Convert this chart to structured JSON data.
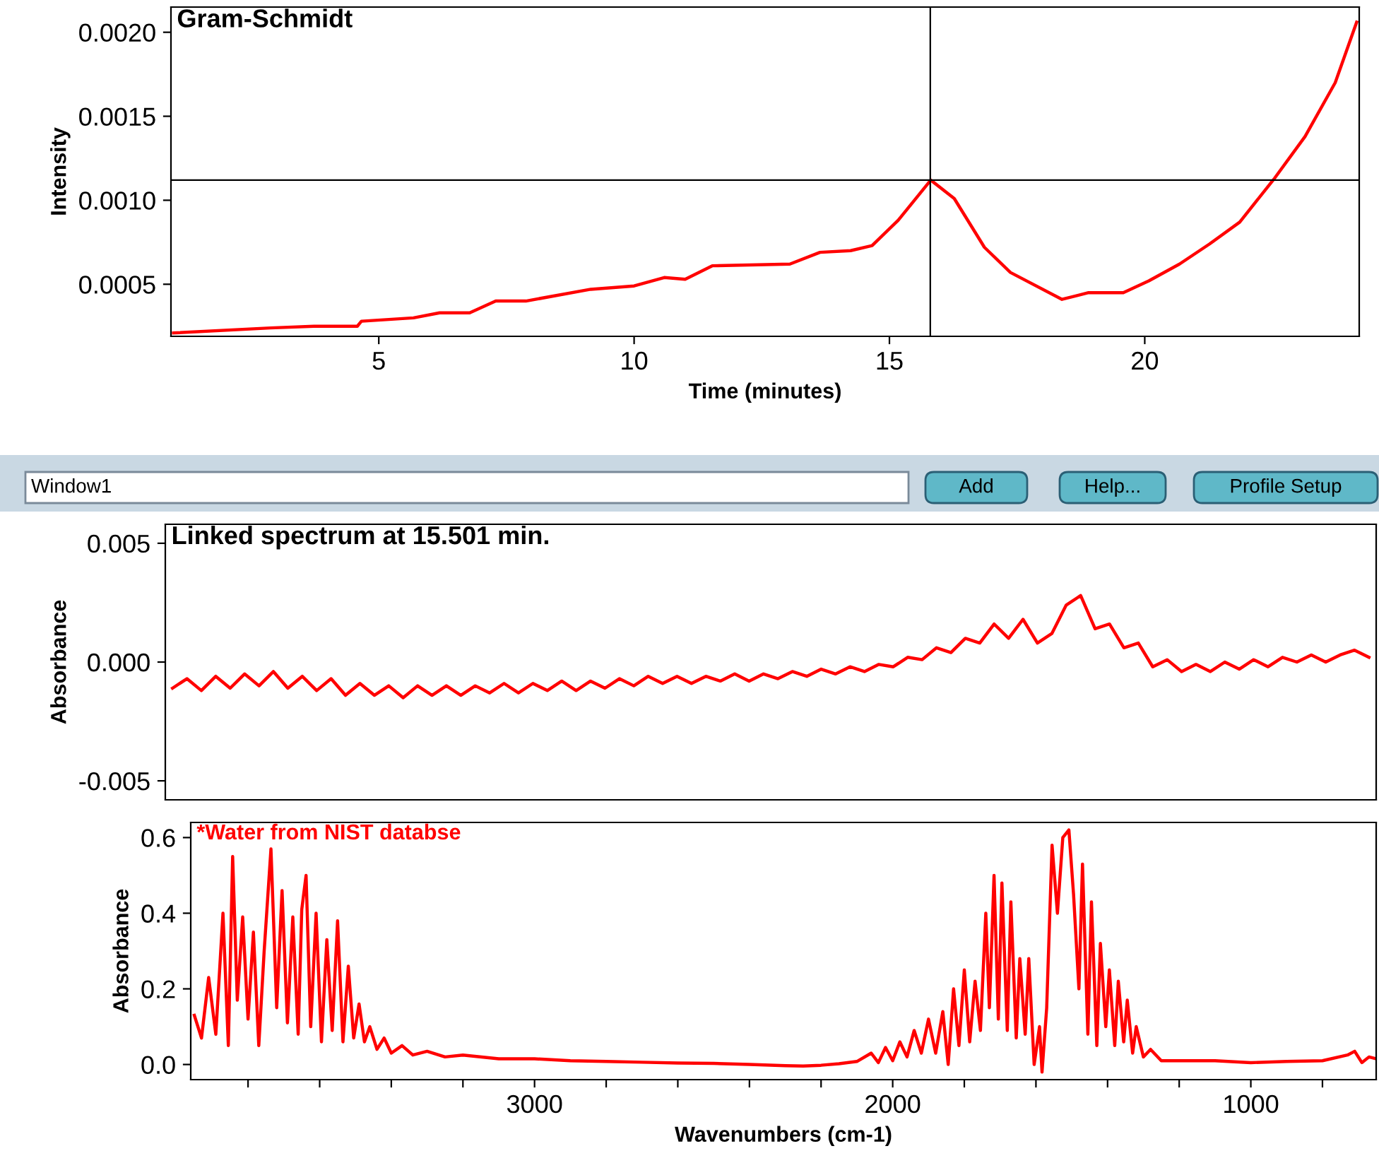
{
  "chart_data": [
    {
      "type": "line",
      "title": "Gram-Schmidt",
      "xlabel": "Time (minutes)",
      "ylabel": "Intensity",
      "xlim": [
        0.93,
        24.2
      ],
      "xticks": [
        5,
        10,
        15,
        20
      ],
      "ylim": [
        0.00019,
        0.00215
      ],
      "yticks": [
        {
          "value": 0.0005,
          "label": "0.0005"
        },
        {
          "value": 0.001,
          "label": "0.0010"
        },
        {
          "value": 0.0015,
          "label": "0.0015"
        },
        {
          "value": 0.002,
          "label": "0.0020"
        }
      ],
      "grid": false,
      "legend": false,
      "ref_lines": [
        {
          "axis": "x",
          "value": 15.8,
          "label": null,
          "color": "#000000"
        },
        {
          "axis": "y",
          "value": 0.00112,
          "label": null,
          "color": "#000000"
        }
      ],
      "series": [
        {
          "color": "#ff0000",
          "x": [
            0.98,
            2.88,
            3.73,
            4.58,
            4.66,
            5.68,
            6.19,
            6.78,
            7.29,
            7.88,
            9.15,
            10.0,
            10.59,
            11.0,
            11.53,
            13.05,
            13.64,
            14.24,
            14.66,
            15.17,
            15.81,
            16.27,
            16.86,
            17.37,
            18.38,
            18.9,
            19.58,
            20.08,
            20.68,
            21.27,
            21.86,
            22.2,
            22.54,
            23.14,
            23.73,
            24.15
          ],
          "values": [
            0.00021,
            0.00024,
            0.00025,
            0.00025,
            0.00028,
            0.0003,
            0.00033,
            0.00033,
            0.0004,
            0.0004,
            0.00047,
            0.00049,
            0.00054,
            0.00053,
            0.00061,
            0.00062,
            0.00069,
            0.0007,
            0.00073,
            0.00088,
            0.00112,
            0.00101,
            0.00072,
            0.00057,
            0.00041,
            0.00045,
            0.00045,
            0.00052,
            0.00062,
            0.00074,
            0.00087,
            0.001,
            0.00113,
            0.00138,
            0.0017,
            0.00206
          ]
        }
      ]
    },
    {
      "type": "other",
      "annotations": [
        "Window1",
        "Add",
        "Help...",
        "Profile Setup"
      ]
    },
    {
      "type": "line",
      "title": "Linked spectrum at 15.501 min.",
      "ylabel": "Absorbance",
      "categories": [
        null,
        null,
        null,
        null,
        null,
        null,
        null,
        null,
        null,
        null,
        null,
        null,
        null,
        null,
        null,
        null,
        null,
        null,
        null,
        null,
        null,
        null,
        null,
        null,
        null,
        null,
        null,
        null,
        null,
        null,
        null,
        null,
        null,
        null,
        null,
        null,
        null,
        null,
        null,
        null,
        null,
        null,
        null,
        null,
        null,
        null,
        null,
        null,
        null,
        null,
        null,
        null,
        null,
        null,
        null,
        null,
        null,
        null,
        null,
        null,
        null,
        null,
        null,
        null,
        null,
        null,
        null,
        null,
        null,
        null,
        null,
        null,
        null,
        null,
        null,
        null,
        null,
        null,
        null,
        null,
        null,
        null,
        null,
        null
      ],
      "ylim": [
        -0.0058,
        0.0058
      ],
      "yticks": [
        {
          "value": -0.005,
          "label": "-0.005"
        },
        {
          "value": 0,
          "label": "0.000"
        },
        {
          "value": 0.005,
          "label": "0.005"
        }
      ],
      "tick_labels": "y",
      "grid": false,
      "legend": false,
      "series": [
        {
          "color": "#ff0000",
          "values": [
            -0.0011,
            -0.0007,
            -0.0012,
            -0.0006,
            -0.0011,
            -0.0005,
            -0.001,
            -0.0004,
            -0.0011,
            -0.0006,
            -0.0012,
            -0.0007,
            -0.0014,
            -0.0009,
            -0.0014,
            -0.001,
            -0.0015,
            -0.001,
            -0.0014,
            -0.001,
            -0.0014,
            -0.001,
            -0.0013,
            -0.0009,
            -0.0013,
            -0.0009,
            -0.0012,
            -0.0008,
            -0.0012,
            -0.0008,
            -0.0011,
            -0.0007,
            -0.001,
            -0.0006,
            -0.0009,
            -0.0006,
            -0.0009,
            -0.0006,
            -0.0008,
            -0.0005,
            -0.0008,
            -0.0005,
            -0.0007,
            -0.0004,
            -0.0006,
            -0.0003,
            -0.0005,
            -0.0002,
            -0.0004,
            -0.0001,
            -0.0002,
            0.0002,
            0.0001,
            0.0006,
            0.0004,
            0.001,
            0.0008,
            0.0016,
            0.001,
            0.0018,
            0.0008,
            0.0012,
            0.0024,
            0.0028,
            0.0014,
            0.0016,
            0.0006,
            0.0008,
            -0.0002,
            0.0001,
            -0.0004,
            -0.0001,
            -0.0004,
            0.0,
            -0.0003,
            0.0001,
            -0.0002,
            0.0002,
            0.0,
            0.0003,
            0.0,
            0.0003,
            0.0005,
            0.0002
          ]
        }
      ]
    },
    {
      "type": "line",
      "title": "*Water from NIST databse",
      "xlabel": "Wavenumbers (cm-1)",
      "ylabel": "Absorbance",
      "xlim": [
        3960,
        650
      ],
      "xticks": [
        {
          "value": 3800,
          "label": null
        },
        {
          "value": 3600,
          "label": null
        },
        {
          "value": 3400,
          "label": null
        },
        {
          "value": 3200,
          "label": null
        },
        3000,
        {
          "value": 2800,
          "label": null
        },
        {
          "value": 2600,
          "label": null
        },
        {
          "value": 2400,
          "label": null
        },
        {
          "value": 2200,
          "label": null
        },
        2000,
        {
          "value": 1800,
          "label": null
        },
        {
          "value": 1600,
          "label": null
        },
        {
          "value": 1400,
          "label": null
        },
        {
          "value": 1200,
          "label": null
        },
        1000,
        {
          "value": 800,
          "label": null
        }
      ],
      "ylim": [
        -0.04,
        0.64
      ],
      "yticks": [
        {
          "value": 0,
          "label": "0.0"
        },
        {
          "value": 0.2,
          "label": "0.2"
        },
        {
          "value": 0.4,
          "label": "0.4"
        },
        {
          "value": 0.6,
          "label": "0.6"
        }
      ],
      "grid": false,
      "legend": false,
      "series": [
        {
          "color": "#ff0000",
          "x": [
            3950,
            3930,
            3910,
            3890,
            3870,
            3855,
            3843,
            3830,
            3815,
            3800,
            3785,
            3770,
            3755,
            3736,
            3720,
            3705,
            3690,
            3675,
            3660,
            3650,
            3638,
            3625,
            3610,
            3595,
            3580,
            3565,
            3550,
            3535,
            3520,
            3505,
            3490,
            3475,
            3460,
            3440,
            3420,
            3400,
            3370,
            3340,
            3300,
            3250,
            3200,
            3100,
            3000,
            2900,
            2800,
            2700,
            2600,
            2500,
            2400,
            2300,
            2250,
            2200,
            2150,
            2100,
            2060,
            2040,
            2020,
            2000,
            1980,
            1960,
            1940,
            1920,
            1900,
            1880,
            1860,
            1845,
            1830,
            1815,
            1800,
            1785,
            1770,
            1755,
            1740,
            1730,
            1717,
            1705,
            1695,
            1680,
            1670,
            1655,
            1645,
            1630,
            1620,
            1605,
            1590,
            1583,
            1570,
            1555,
            1540,
            1525,
            1508,
            1495,
            1480,
            1470,
            1455,
            1445,
            1430,
            1420,
            1405,
            1395,
            1380,
            1370,
            1355,
            1345,
            1330,
            1320,
            1300,
            1280,
            1250,
            1200,
            1100,
            1000,
            900,
            800,
            730,
            710,
            690,
            670,
            650
          ],
          "values": [
            0.13,
            0.07,
            0.23,
            0.08,
            0.4,
            0.05,
            0.55,
            0.17,
            0.39,
            0.12,
            0.35,
            0.05,
            0.3,
            0.57,
            0.15,
            0.46,
            0.11,
            0.39,
            0.08,
            0.41,
            0.5,
            0.1,
            0.4,
            0.06,
            0.33,
            0.09,
            0.38,
            0.06,
            0.26,
            0.07,
            0.16,
            0.06,
            0.1,
            0.04,
            0.07,
            0.03,
            0.05,
            0.025,
            0.035,
            0.02,
            0.025,
            0.015,
            0.015,
            0.01,
            0.008,
            0.006,
            0.004,
            0.003,
            0.0,
            -0.003,
            -0.004,
            -0.002,
            0.002,
            0.008,
            0.03,
            0.005,
            0.045,
            0.01,
            0.06,
            0.02,
            0.09,
            0.03,
            0.12,
            0.03,
            0.14,
            0.0,
            0.2,
            0.05,
            0.25,
            0.06,
            0.22,
            0.09,
            0.4,
            0.15,
            0.5,
            0.12,
            0.48,
            0.09,
            0.43,
            0.07,
            0.28,
            0.08,
            0.28,
            0.0,
            0.1,
            -0.02,
            0.15,
            0.58,
            0.4,
            0.6,
            0.62,
            0.45,
            0.2,
            0.53,
            0.08,
            0.43,
            0.05,
            0.32,
            0.1,
            0.25,
            0.05,
            0.22,
            0.06,
            0.17,
            0.03,
            0.1,
            0.02,
            0.04,
            0.01,
            0.01,
            0.01,
            0.005,
            0.008,
            0.01,
            0.025,
            0.035,
            0.005,
            0.02,
            0.015
          ]
        }
      ]
    }
  ]
}
